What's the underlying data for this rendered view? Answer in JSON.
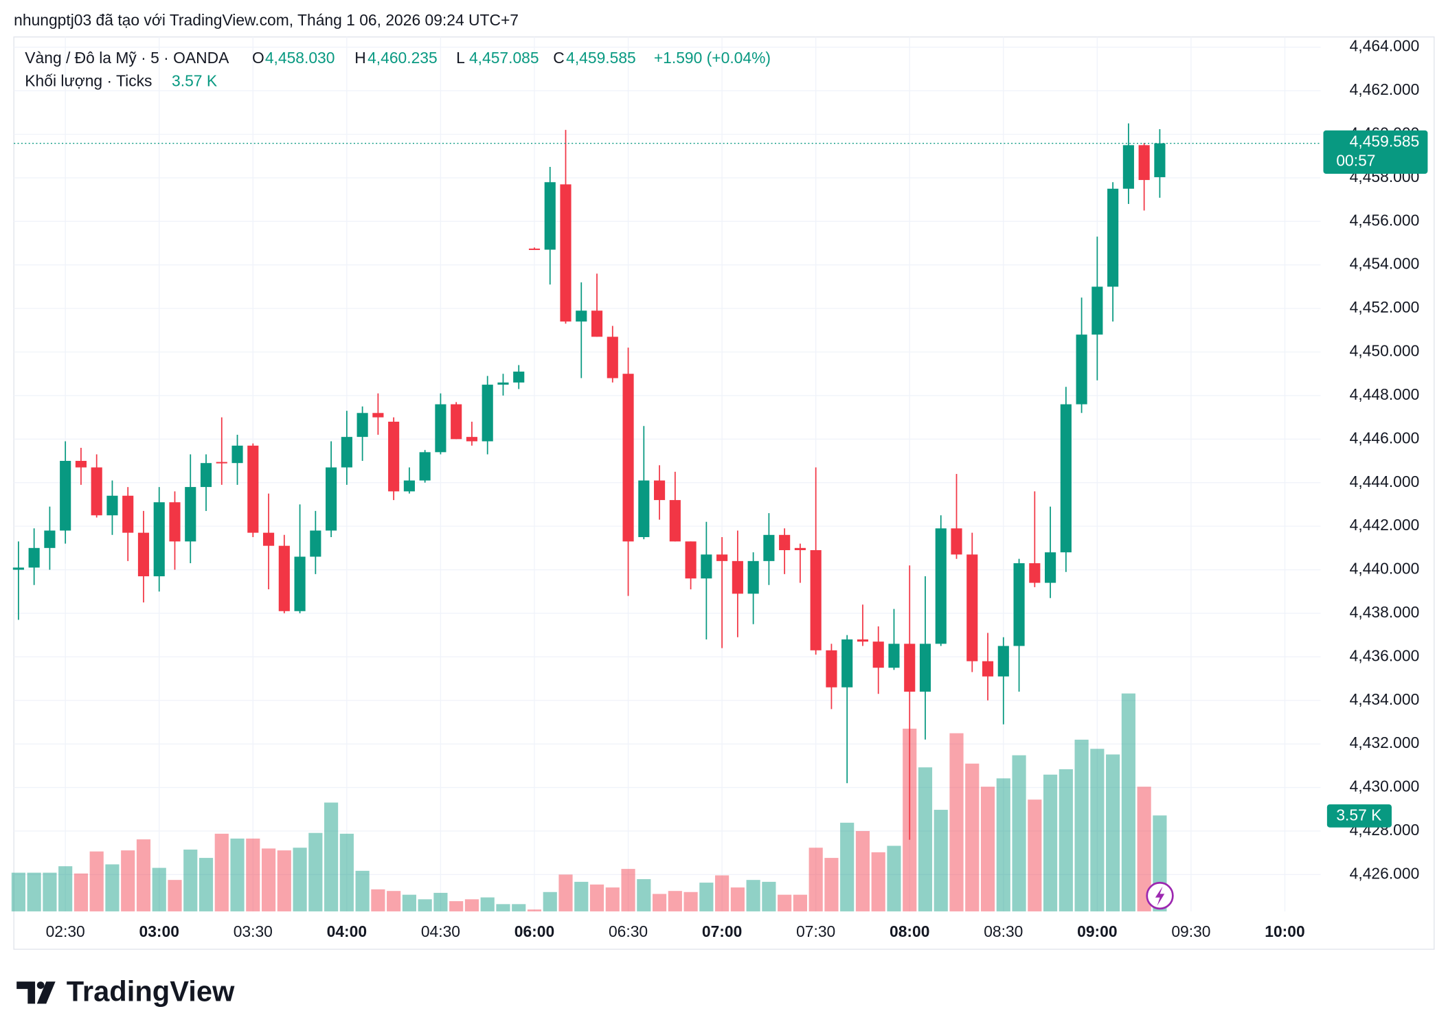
{
  "caption": "nhungptj03 đã tạo với TradingView.com, Tháng 1 06, 2026 09:24 UTC+7",
  "logo": "TradingView",
  "chart_data": {
    "type": "candlestick",
    "symbol": "Vàng / Đô la Mỹ · 5 · OANDA",
    "ohlc_legend": [
      {
        "key": "O",
        "value": "4,458.030"
      },
      {
        "key": "H",
        "value": "4,460.235"
      },
      {
        "key": "L",
        "value": "4,457.085"
      },
      {
        "key": "C",
        "value": "4,459.585"
      }
    ],
    "change": "+1.590 (+0.04%)",
    "last_price_label": "4,459.585",
    "countdown": "00:57",
    "up_color": "#089981",
    "down_color": "#f23645",
    "grid": true,
    "categories": [
      null,
      null,
      null,
      "02:30",
      null,
      null,
      null,
      null,
      null,
      "03:00",
      null,
      null,
      null,
      null,
      null,
      "03:30",
      null,
      null,
      null,
      null,
      null,
      "04:00",
      null,
      null,
      null,
      null,
      null,
      "04:30",
      null,
      null,
      null,
      null,
      null,
      "06:00",
      null,
      null,
      null,
      null,
      null,
      "06:30",
      null,
      null,
      null,
      null,
      null,
      "07:00",
      null,
      null,
      null,
      null,
      null,
      "07:30",
      null,
      null,
      null,
      null,
      null,
      "08:00",
      null,
      null,
      null,
      null,
      null,
      "08:30",
      null,
      null,
      null,
      null,
      null,
      "09:00",
      null,
      null,
      null,
      null,
      null,
      "09:30",
      null,
      null,
      null,
      null,
      null,
      "10:00"
    ],
    "open": [
      4440.0,
      4440.1,
      4441.0,
      4441.8,
      4445.0,
      4444.7,
      4442.5,
      4443.4,
      4441.7,
      4439.7,
      4443.1,
      4441.3,
      4443.8,
      4444.95,
      4444.9,
      4445.7,
      4441.7,
      4441.1,
      4438.1,
      4440.6,
      4441.8,
      4444.7,
      4446.1,
      4447.2,
      4446.8,
      4443.6,
      4444.1,
      4445.4,
      4447.6,
      4446.1,
      4445.9,
      4448.5,
      4448.6,
      4454.75,
      4454.7,
      4457.7,
      4451.4,
      4451.9,
      4450.7,
      4449.0,
      4441.5,
      4444.1,
      4443.2,
      4441.3,
      4439.6,
      4440.7,
      4440.4,
      4438.9,
      4440.4,
      4441.6,
      4441.0,
      4440.9,
      4436.3,
      4434.6,
      4436.8,
      4436.7,
      4435.5,
      4436.6,
      4434.4,
      4436.6,
      4441.9,
      4440.7,
      4435.8,
      4435.1,
      4436.5,
      4440.3,
      4439.4,
      4440.8,
      4447.6,
      4450.8,
      4453.0,
      4457.5,
      4459.5,
      4458.03,
      null,
      null,
      null,
      null,
      null,
      null,
      null,
      null
    ],
    "high": [
      4441.3,
      4441.9,
      4442.9,
      4445.9,
      4445.6,
      4445.3,
      4444.1,
      4443.8,
      4442.7,
      4443.8,
      4443.6,
      4445.3,
      4445.3,
      4447.0,
      4446.2,
      4445.8,
      4443.5,
      4441.6,
      4443.0,
      4442.7,
      4445.9,
      4447.3,
      4447.5,
      4448.1,
      4447.0,
      4444.7,
      4445.5,
      4448.1,
      4447.7,
      4446.8,
      4448.9,
      4449.0,
      4449.4,
      4454.8,
      4458.5,
      4460.2,
      4453.2,
      4453.6,
      4451.2,
      4450.2,
      4446.6,
      4444.8,
      4444.5,
      4441.3,
      4442.2,
      4441.5,
      4441.8,
      4440.8,
      4442.6,
      4441.9,
      4441.2,
      4444.7,
      4436.6,
      4437.0,
      4438.4,
      4437.4,
      4438.2,
      4440.2,
      4439.7,
      4442.5,
      4444.4,
      4441.7,
      4437.1,
      4436.9,
      4440.5,
      4443.6,
      4442.9,
      4448.4,
      4452.5,
      4455.3,
      4457.8,
      4460.5,
      4459.6,
      4460.235,
      null,
      null,
      null,
      null,
      null,
      null,
      null,
      null
    ],
    "low": [
      4437.7,
      4439.3,
      4440.0,
      4441.2,
      4443.9,
      4442.4,
      4441.6,
      4440.4,
      4438.5,
      4439.0,
      4440.0,
      4440.3,
      4442.7,
      4443.9,
      4443.9,
      4441.5,
      4439.1,
      4438.0,
      4438.0,
      4439.8,
      4441.5,
      4443.9,
      4445.0,
      4446.2,
      4443.2,
      4443.5,
      4444.0,
      4445.3,
      4446.0,
      4445.7,
      4445.3,
      4448.0,
      4448.3,
      4454.7,
      4453.1,
      4451.3,
      4448.8,
      4450.7,
      4448.6,
      4438.8,
      4441.4,
      4442.3,
      4441.3,
      4439.1,
      4436.8,
      4436.4,
      4436.9,
      4437.5,
      4439.3,
      4439.8,
      4439.4,
      4436.1,
      4433.6,
      4430.2,
      4436.5,
      4434.3,
      4435.4,
      4427.6,
      4432.2,
      4436.5,
      4440.5,
      4435.3,
      4434.0,
      4432.9,
      4434.4,
      4439.2,
      4438.7,
      4439.9,
      4447.2,
      4448.7,
      4451.4,
      4456.8,
      4456.5,
      4457.085,
      null,
      null,
      null,
      null,
      null,
      null,
      null,
      null
    ],
    "close": [
      4440.1,
      4441.0,
      4441.8,
      4445.0,
      4444.7,
      4442.5,
      4443.4,
      4441.7,
      4439.7,
      4443.1,
      4441.3,
      4443.8,
      4444.9,
      4444.9,
      4445.7,
      4441.7,
      4441.1,
      4438.1,
      4440.6,
      4441.8,
      4444.7,
      4446.1,
      4447.2,
      4447.0,
      4443.6,
      4444.1,
      4445.4,
      4447.6,
      4446.0,
      4445.9,
      4448.5,
      4448.6,
      4449.1,
      4454.7,
      4457.8,
      4451.4,
      4451.9,
      4450.7,
      4448.8,
      4441.3,
      4444.1,
      4443.2,
      4441.3,
      4439.6,
      4440.7,
      4440.4,
      4438.9,
      4440.4,
      4441.6,
      4440.9,
      4440.9,
      4436.3,
      4434.6,
      4436.8,
      4436.7,
      4435.5,
      4436.6,
      4434.4,
      4436.6,
      4441.9,
      4440.7,
      4435.8,
      4435.1,
      4436.5,
      4440.3,
      4439.4,
      4440.8,
      4447.6,
      4450.8,
      4453.0,
      4457.5,
      4459.5,
      4457.9,
      4459.585,
      null,
      null,
      null,
      null,
      null,
      null,
      null,
      null
    ],
    "volume": {
      "name": "Khối lượng · Ticks",
      "last_label": "3.57 K",
      "values": [
        1.44,
        1.44,
        1.44,
        1.68,
        1.41,
        2.23,
        1.75,
        2.27,
        2.68,
        1.62,
        1.17,
        2.3,
        1.99,
        2.89,
        2.71,
        2.71,
        2.34,
        2.27,
        2.37,
        2.92,
        4.05,
        2.89,
        1.51,
        0.82,
        0.76,
        0.62,
        0.45,
        0.69,
        0.38,
        0.45,
        0.52,
        0.27,
        0.27,
        0.07,
        0.72,
        1.37,
        1.1,
        1.0,
        0.89,
        1.58,
        1.2,
        0.65,
        0.76,
        0.72,
        1.07,
        1.34,
        0.89,
        1.17,
        1.1,
        0.62,
        0.62,
        2.37,
        1.99,
        3.3,
        2.99,
        2.2,
        2.44,
        6.8,
        5.36,
        3.78,
        6.63,
        5.5,
        4.64,
        4.95,
        5.81,
        4.16,
        5.09,
        5.29,
        6.39,
        6.05,
        5.84,
        8.11,
        4.64,
        3.57,
        null,
        null,
        null,
        null,
        null,
        null,
        null,
        null
      ]
    },
    "ylim": [
      4424.31,
      4464.47
    ],
    "yticks": [
      {
        "value": 4426,
        "label": "4,426.000"
      },
      {
        "value": 4428,
        "label": "4,428.000"
      },
      {
        "value": 4430,
        "label": "4,430.000"
      },
      {
        "value": 4432,
        "label": "4,432.000"
      },
      {
        "value": 4434,
        "label": "4,434.000"
      },
      {
        "value": 4436,
        "label": "4,436.000"
      },
      {
        "value": 4438,
        "label": "4,438.000"
      },
      {
        "value": 4440,
        "label": "4,440.000"
      },
      {
        "value": 4442,
        "label": "4,442.000"
      },
      {
        "value": 4444,
        "label": "4,444.000"
      },
      {
        "value": 4446,
        "label": "4,446.000"
      },
      {
        "value": 4448,
        "label": "4,448.000"
      },
      {
        "value": 4450,
        "label": "4,450.000"
      },
      {
        "value": 4452,
        "label": "4,452.000"
      },
      {
        "value": 4454,
        "label": "4,454.000"
      },
      {
        "value": 4456,
        "label": "4,456.000"
      },
      {
        "value": 4458,
        "label": "4,458.000"
      },
      {
        "value": 4460,
        "label": "4,460.000"
      },
      {
        "value": 4462,
        "label": "4,462.000"
      },
      {
        "value": 4464,
        "label": "4,464.000"
      }
    ]
  }
}
